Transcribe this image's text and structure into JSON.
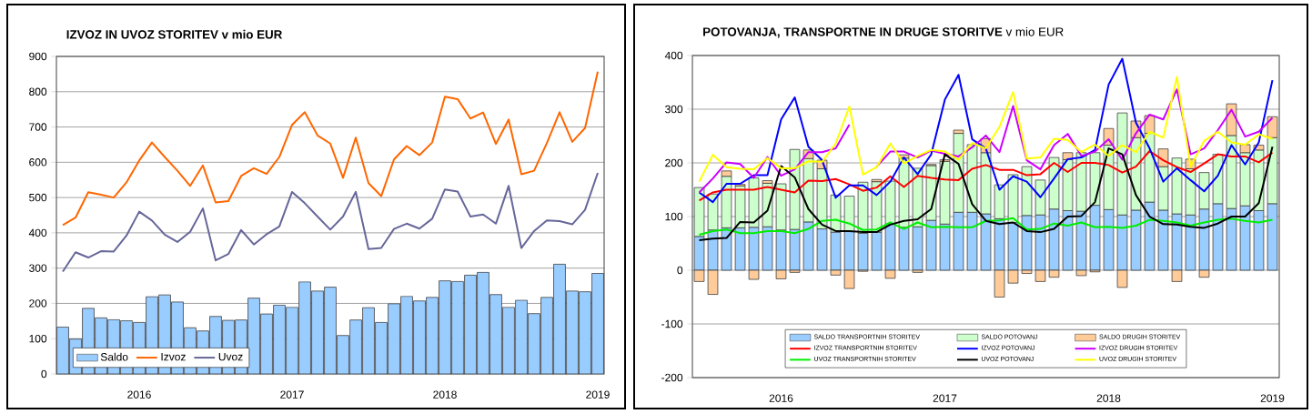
{
  "chart_data": [
    {
      "type": "bar",
      "title": "IZVOZ IN UVOZ STORITEV v mio EUR",
      "categories": [
        null,
        null,
        null,
        null,
        null,
        null,
        "2016",
        null,
        null,
        null,
        null,
        null,
        null,
        null,
        null,
        null,
        null,
        null,
        "2017",
        null,
        null,
        null,
        null,
        null,
        null,
        null,
        null,
        null,
        null,
        null,
        "2018",
        null,
        null,
        null,
        null,
        null,
        null,
        null,
        null,
        null,
        null,
        null,
        "2019"
      ],
      "series": [
        {
          "name": "Saldo",
          "type": "bar",
          "color": "#99ccff",
          "values": [
            133,
            99,
            186,
            159,
            154,
            151,
            146,
            219,
            224,
            204,
            131,
            122,
            163,
            152,
            153,
            215,
            170,
            195,
            189,
            261,
            235,
            246,
            109,
            153,
            188,
            146,
            199,
            220,
            207,
            217,
            264,
            262,
            280,
            288,
            225,
            189,
            209,
            171,
            217,
            311,
            235,
            233,
            285
          ]
        },
        {
          "name": "Izvoz",
          "type": "line",
          "color": "#ff6600",
          "values": [
            422,
            443,
            515,
            508,
            500,
            543,
            605,
            656,
            615,
            576,
            533,
            591,
            486,
            490,
            561,
            583,
            567,
            615,
            706,
            742,
            676,
            653,
            556,
            670,
            541,
            504,
            608,
            646,
            620,
            656,
            786,
            779,
            724,
            741,
            652,
            721,
            566,
            576,
            654,
            742,
            658,
            697,
            857
          ]
        },
        {
          "name": "Uvoz",
          "type": "line",
          "color": "#666699",
          "values": [
            290,
            345,
            330,
            348,
            347,
            392,
            460,
            435,
            395,
            374,
            403,
            469,
            322,
            340,
            408,
            367,
            396,
            418,
            516,
            484,
            446,
            409,
            446,
            516,
            354,
            357,
            411,
            426,
            412,
            440,
            523,
            517,
            446,
            452,
            426,
            533,
            357,
            405,
            435,
            433,
            424,
            465,
            570
          ]
        }
      ],
      "ylim": [
        0,
        900
      ],
      "yticks": [
        0,
        100,
        200,
        300,
        400,
        500,
        600,
        700,
        800,
        900
      ],
      "grid": "y",
      "legend": "bottom left"
    },
    {
      "type": "bar",
      "title": "**POTOVANJA, TRANSPORTNE IN DRUGE STORITVE** v mio EUR",
      "stacked": true,
      "categories": [
        null,
        null,
        null,
        null,
        null,
        null,
        "2016",
        null,
        null,
        null,
        null,
        null,
        null,
        null,
        null,
        null,
        null,
        null,
        "2017",
        null,
        null,
        null,
        null,
        null,
        null,
        null,
        null,
        null,
        null,
        null,
        "2018",
        null,
        null,
        null,
        null,
        null,
        null,
        null,
        null,
        null,
        null,
        null,
        "2019"
      ],
      "series": [
        {
          "name": "SALDO TRANSPORTNIH STORITEV",
          "type": "bar",
          "color": "#99ccff",
          "values": [
            63,
            75,
            79,
            79,
            80,
            81,
            75,
            76,
            90,
            77,
            71,
            72,
            69,
            71,
            86,
            80,
            81,
            93,
            86,
            108,
            108,
            105,
            96,
            89,
            102,
            103,
            114,
            111,
            110,
            121,
            113,
            103,
            112,
            127,
            112,
            105,
            103,
            114,
            124,
            115,
            120,
            111,
            124
          ]
        },
        {
          "name": "SALDO POTOVANJ",
          "type": "bar",
          "color": "#ccffcc",
          "values": [
            91,
            67,
            96,
            78,
            92,
            81,
            86,
            149,
            118,
            112,
            69,
            66,
            95,
            94,
            80,
            129,
            109,
            102,
            117,
            147,
            126,
            114,
            63,
            89,
            91,
            65,
            96,
            95,
            109,
            98,
            120,
            190,
            135,
            128,
            81,
            104,
            86,
            68,
            92,
            136,
            99,
            113,
            123
          ]
        },
        {
          "name": "SALDO DRUGIH STORITEV",
          "type": "bar",
          "color": "#ffcc99",
          "values": [
            -21,
            -45,
            10,
            3,
            -17,
            5,
            -16,
            -4,
            16,
            16,
            -9,
            -34,
            -2,
            4,
            -15,
            6,
            -4,
            2,
            3,
            6,
            null,
            26,
            -50,
            -24,
            -6,
            -21,
            -13,
            13,
            -10,
            -3,
            31,
            -32,
            31,
            33,
            33,
            -21,
            18,
            -13,
            null,
            59,
            15,
            9,
            39
          ]
        },
        {
          "name": "IZVOZ TRANSPORTNIH STORITEV",
          "type": "line",
          "color": "#ff0000",
          "values": [
            130,
            145,
            150,
            150,
            150,
            155,
            150,
            145,
            167,
            166,
            170,
            160,
            148,
            154,
            175,
            155,
            176,
            172,
            169,
            168,
            189,
            196,
            187,
            187,
            177,
            179,
            200,
            183,
            200,
            200,
            196,
            182,
            193,
            222,
            205,
            192,
            183,
            199,
            216,
            212,
            212,
            201,
            219
          ]
        },
        {
          "name": "IZVOZ POTOVANJ",
          "type": "line",
          "color": "#0000ff",
          "values": [
            145,
            127,
            161,
            161,
            177,
            177,
            281,
            322,
            230,
            205,
            135,
            158,
            158,
            140,
            165,
            210,
            179,
            216,
            318,
            364,
            244,
            227,
            150,
            175,
            165,
            136,
            171,
            207,
            210,
            224,
            346,
            394,
            275,
            227,
            165,
            190,
            168,
            147,
            176,
            233,
            197,
            238,
            354
          ]
        },
        {
          "name": "IZVOZ DRUGIH STORITEV",
          "type": "line",
          "color": "#cc00ff",
          "values": [
            145,
            171,
            201,
            198,
            172,
            211,
            176,
            188,
            220,
            220,
            227,
            271,
            null,
            193,
            221,
            221,
            210,
            223,
            217,
            212,
            229,
            251,
            220,
            306,
            205,
            188,
            233,
            254,
            213,
            221,
            244,
            206,
            255,
            290,
            281,
            337,
            216,
            227,
            261,
            299,
            249,
            258,
            284
          ]
        },
        {
          "name": "UVOZ TRANSPORTNIH STORITEV",
          "type": "line",
          "color": "#00ee00",
          "values": [
            66,
            73,
            76,
            69,
            69,
            73,
            73,
            69,
            77,
            92,
            94,
            87,
            75,
            76,
            89,
            77,
            89,
            80,
            81,
            80,
            80,
            92,
            93,
            97,
            76,
            77,
            87,
            83,
            89,
            80,
            81,
            79,
            83,
            94,
            92,
            89,
            83,
            89,
            94,
            96,
            92,
            89,
            94
          ]
        },
        {
          "name": "UVOZ POTOVANJ",
          "type": "line",
          "color": "#000000",
          "values": [
            56,
            59,
            60,
            90,
            89,
            111,
            194,
            173,
            114,
            85,
            73,
            73,
            71,
            71,
            85,
            92,
            95,
            114,
            216,
            198,
            123,
            92,
            86,
            89,
            73,
            71,
            77,
            100,
            101,
            127,
            227,
            216,
            140,
            100,
            86,
            85,
            81,
            79,
            87,
            100,
            100,
            125,
            230
          ]
        },
        {
          "name": "UVOZ DRUGIH STORITEV",
          "type": "line",
          "color": "#ffff00",
          "values": [
            165,
            215,
            192,
            189,
            188,
            209,
            190,
            190,
            203,
            202,
            236,
            305,
            178,
            192,
            236,
            199,
            213,
            224,
            221,
            206,
            237,
            227,
            267,
            332,
            208,
            210,
            245,
            243,
            220,
            234,
            213,
            233,
            220,
            258,
            247,
            360,
            193,
            241,
            258,
            238,
            234,
            253,
            245
          ]
        }
      ],
      "ylim": [
        -200,
        400
      ],
      "yticks": [
        -200,
        -100,
        0,
        100,
        200,
        300,
        400
      ],
      "grid": "y",
      "legend": "bottom"
    }
  ]
}
